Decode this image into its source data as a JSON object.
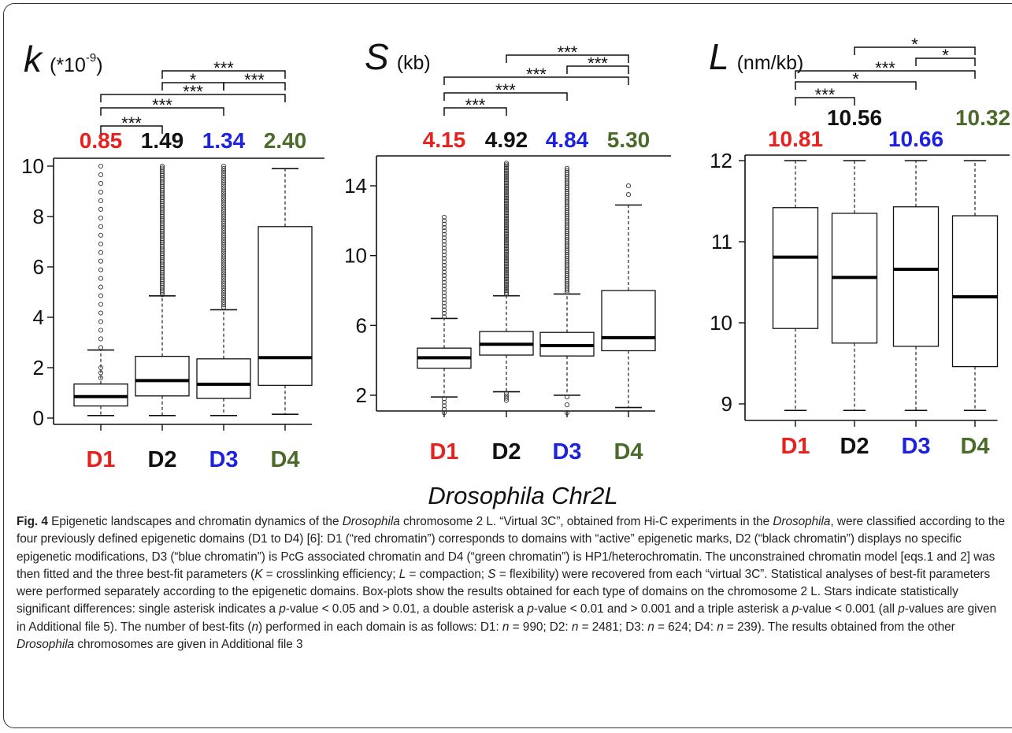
{
  "figure_title": "Drosophila Chr2L",
  "chart_data": [
    {
      "type": "box",
      "panel": "k",
      "title_symbol": "k",
      "title_unit": "(*10",
      "title_exp": "-9",
      "title_close": ")",
      "categories": [
        "D1",
        "D2",
        "D3",
        "D4"
      ],
      "category_colors": [
        "#e8201e",
        "#111111",
        "#1c22e0",
        "#4b6b2a"
      ],
      "medians_label": [
        "0.85",
        "1.49",
        "1.34",
        "2.40"
      ],
      "yticks": [
        0,
        2,
        4,
        6,
        8,
        10
      ],
      "ylim": [
        0,
        10
      ],
      "boxes": [
        {
          "min": 0.1,
          "q1": 0.48,
          "median": 0.85,
          "q3": 1.35,
          "max": 2.7
        },
        {
          "min": 0.1,
          "q1": 0.88,
          "median": 1.49,
          "q3": 2.45,
          "max": 4.85
        },
        {
          "min": 0.1,
          "q1": 0.78,
          "median": 1.34,
          "q3": 2.35,
          "max": 4.3
        },
        {
          "min": 0.15,
          "q1": 1.3,
          "median": 2.4,
          "q3": 7.6,
          "max": 9.9
        }
      ],
      "significance": [
        {
          "from": 1,
          "to": 2,
          "label": "***"
        },
        {
          "from": 1,
          "to": 3,
          "label": "***"
        },
        {
          "from": 1,
          "to": 4,
          "label": "***"
        },
        {
          "from": 2,
          "to": 3,
          "label": "*"
        },
        {
          "from": 3,
          "to": 4,
          "label": "***"
        },
        {
          "from": 2,
          "to": 4,
          "label": "***"
        }
      ]
    },
    {
      "type": "box",
      "panel": "S",
      "title_symbol": "S",
      "title_unit": "(kb)",
      "categories": [
        "D1",
        "D2",
        "D3",
        "D4"
      ],
      "category_colors": [
        "#e8201e",
        "#111111",
        "#1c22e0",
        "#4b6b2a"
      ],
      "medians_label": [
        "4.15",
        "4.92",
        "4.84",
        "5.30"
      ],
      "yticks": [
        2,
        6,
        10,
        14
      ],
      "ylim": [
        0.5,
        15.5
      ],
      "boxes": [
        {
          "min": 1.9,
          "q1": 3.55,
          "median": 4.15,
          "q3": 4.7,
          "max": 6.4
        },
        {
          "min": 2.2,
          "q1": 4.3,
          "median": 4.92,
          "q3": 5.65,
          "max": 7.7
        },
        {
          "min": 2.0,
          "q1": 4.25,
          "median": 4.84,
          "q3": 5.6,
          "max": 7.8
        },
        {
          "min": 1.3,
          "q1": 4.55,
          "median": 5.3,
          "q3": 8.0,
          "max": 12.9
        }
      ],
      "significance": [
        {
          "from": 1,
          "to": 2,
          "label": "***"
        },
        {
          "from": 1,
          "to": 3,
          "label": "***"
        },
        {
          "from": 1,
          "to": 4,
          "label": "***"
        },
        {
          "from": 3,
          "to": 4,
          "label": "***"
        },
        {
          "from": 2,
          "to": 4,
          "label": "***"
        }
      ]
    },
    {
      "type": "box",
      "panel": "L",
      "title_symbol": "L",
      "title_unit": "(nm/kb)",
      "categories": [
        "D1",
        "D2",
        "D3",
        "D4"
      ],
      "category_colors": [
        "#e8201e",
        "#111111",
        "#1c22e0",
        "#4b6b2a"
      ],
      "medians_label": [
        "10.81",
        "10.56",
        "10.66",
        "10.32"
      ],
      "yticks": [
        9,
        10,
        11,
        12
      ],
      "ylim": [
        8.8,
        12.1
      ],
      "boxes": [
        {
          "min": 8.92,
          "q1": 9.93,
          "median": 10.81,
          "q3": 11.42,
          "max": 12.0
        },
        {
          "min": 8.92,
          "q1": 9.75,
          "median": 10.56,
          "q3": 11.35,
          "max": 12.0
        },
        {
          "min": 8.92,
          "q1": 9.71,
          "median": 10.66,
          "q3": 11.43,
          "max": 12.0
        },
        {
          "min": 8.92,
          "q1": 9.46,
          "median": 10.32,
          "q3": 11.32,
          "max": 12.0
        }
      ],
      "significance": [
        {
          "from": 1,
          "to": 2,
          "label": "***"
        },
        {
          "from": 1,
          "to": 3,
          "label": "*"
        },
        {
          "from": 1,
          "to": 4,
          "label": "***"
        },
        {
          "from": 3,
          "to": 4,
          "label": "*"
        },
        {
          "from": 2,
          "to": 4,
          "label": "*"
        }
      ]
    }
  ],
  "caption": {
    "fig_label": "Fig. 4",
    "t1": " Epigenetic landscapes and chromatin dynamics of the ",
    "i1": "Drosophila",
    "t2": " chromosome 2 L. “Virtual 3C”, obtained from Hi-C experiments in the ",
    "i2": "Drosophila",
    "t3": ", were classified according to the four previously defined epigenetic domains (D1 to D4) [6]: D1 (“red chromatin”) corresponds to domains with “active” epigenetic marks, D2 (“black chromatin”) displays no specific epigenetic modifications, D3 (“blue chromatin”) is PcG associated chromatin and D4 (“green chromatin”) is HP1/heterochromatin. The unconstrained chromatin model [eqs.1 and 2] was then fitted and the three best-fit parameters (",
    "i3": "K",
    "t4": " = crosslinking efficiency; ",
    "i4": "L",
    "t5": " = compaction; ",
    "i5": "S",
    "t6": " = flexibility) were recovered from each “virtual 3C”. Statistical analyses of best-fit parameters were performed separately according to the epigenetic domains. Box-plots show the results obtained for each type of domains on the chromosome 2 L. Stars indicate statistically significant differences: single asterisk indicates a ",
    "i6": "p",
    "t7": "-value < 0.05 and > 0.01, a double asterisk a ",
    "i7": "p",
    "t8": "-value < 0.01 and > 0.001 and a triple asterisk a ",
    "i8": "p",
    "t9": "-value < 0.001 (all ",
    "i9": "p",
    "t10": "-values are given in Additional file 5). The number of best-fits (",
    "i10": "n",
    "t11": ") performed in each domain is as follows: D1: ",
    "i11": "n",
    "t12": " = 990; D2: ",
    "i12": "n",
    "t13": " = 2481; D3: ",
    "i13": "n",
    "t14": " = 624; D4: ",
    "i14": "n",
    "t15": " = 239). The results obtained from the other ",
    "i15": "Drosophila",
    "t16": " chromosomes are given in Additional file 3"
  }
}
